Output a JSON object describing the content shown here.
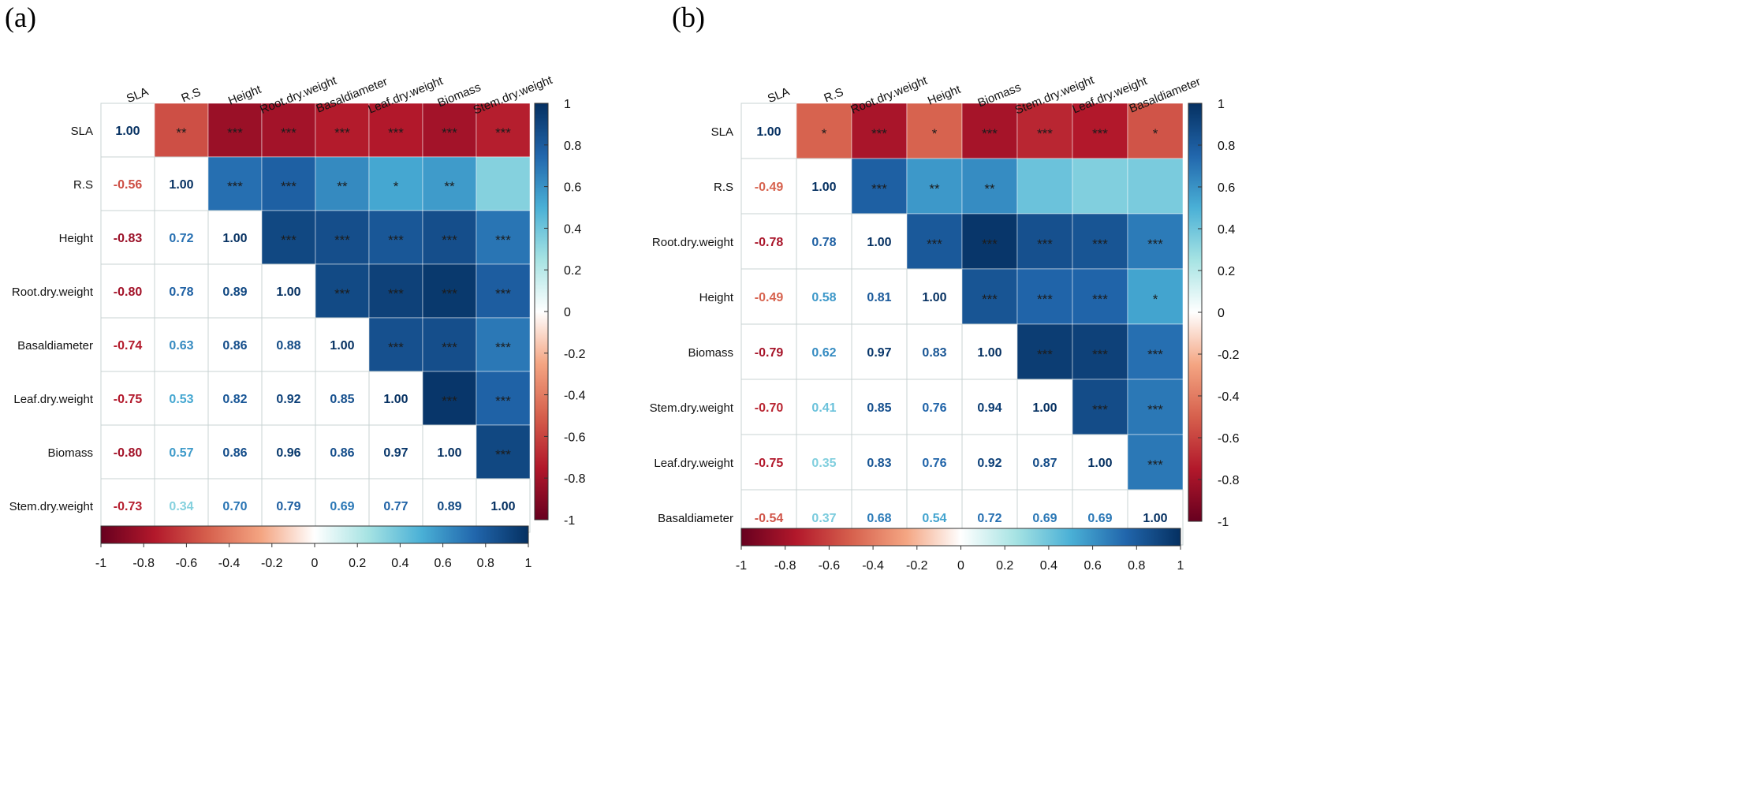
{
  "panel_labels": [
    "(a)",
    "(b)"
  ],
  "chart_data": [
    {
      "type": "heatmap",
      "panel": "(a)",
      "variables": [
        "SLA",
        "R.S",
        "Height",
        "Root.dry.weight",
        "Basaldiameter",
        "Leaf.dry.weight",
        "Biomass",
        "Stem.dry.weight"
      ],
      "lower_labels": [
        [
          "1.00",
          "",
          "",
          "",
          "",
          "",
          "",
          ""
        ],
        [
          "-0.56",
          "1.00",
          "",
          "",
          "",
          "",
          "",
          ""
        ],
        [
          "-0.83",
          "0.72",
          "1.00",
          "",
          "",
          "",
          "",
          ""
        ],
        [
          "-0.80",
          "0.78",
          "0.89",
          "1.00",
          "",
          "",
          "",
          ""
        ],
        [
          "-0.74",
          "0.63",
          "0.86",
          "0.88",
          "1.00",
          "",
          "",
          ""
        ],
        [
          "-0.75",
          "0.53",
          "0.82",
          "0.92",
          "0.85",
          "1.00",
          "",
          ""
        ],
        [
          "-0.80",
          "0.57",
          "0.86",
          "0.96",
          "0.86",
          "0.97",
          "1.00",
          ""
        ],
        [
          "-0.73",
          "0.34",
          "0.70",
          "0.79",
          "0.69",
          "0.77",
          "0.89",
          "1.00"
        ]
      ],
      "significance": [
        [
          "",
          "**",
          "***",
          "***",
          "***",
          "***",
          "***",
          "***"
        ],
        [
          "",
          "",
          "***",
          "***",
          "**",
          "*",
          "**",
          ""
        ],
        [
          "",
          "",
          "",
          "***",
          "***",
          "***",
          "***",
          "***"
        ],
        [
          "",
          "",
          "",
          "",
          "***",
          "***",
          "***",
          "***"
        ],
        [
          "",
          "",
          "",
          "",
          "",
          "***",
          "***",
          "***"
        ],
        [
          "",
          "",
          "",
          "",
          "",
          "",
          "***",
          "***"
        ],
        [
          "",
          "",
          "",
          "",
          "",
          "",
          "",
          "***"
        ],
        [
          "",
          "",
          "",
          "",
          "",
          "",
          "",
          ""
        ]
      ],
      "colorbar_ticks": [
        "1",
        "0.8",
        "0.6",
        "0.4",
        "0.2",
        "0",
        "-0.2",
        "-0.4",
        "-0.6",
        "-0.8",
        "-1"
      ],
      "bottom_colorbar_ticks": [
        "-1",
        "-0.8",
        "-0.6",
        "-0.4",
        "-0.2",
        "0",
        "0.2",
        "0.4",
        "0.6",
        "0.8",
        "1"
      ],
      "scale": [
        -1,
        1
      ]
    },
    {
      "type": "heatmap",
      "panel": "(b)",
      "variables": [
        "SLA",
        "R.S",
        "Root.dry.weight",
        "Height",
        "Biomass",
        "Stem.dry.weight",
        "Leaf.dry.weight",
        "Basaldiameter"
      ],
      "lower_labels": [
        [
          "1.00",
          "",
          "",
          "",
          "",
          "",
          "",
          ""
        ],
        [
          "-0.49",
          "1.00",
          "",
          "",
          "",
          "",
          "",
          ""
        ],
        [
          "-0.78",
          "0.78",
          "1.00",
          "",
          "",
          "",
          "",
          ""
        ],
        [
          "-0.49",
          "0.58",
          "0.81",
          "1.00",
          "",
          "",
          "",
          ""
        ],
        [
          "-0.79",
          "0.62",
          "0.97",
          "0.83",
          "1.00",
          "",
          "",
          ""
        ],
        [
          "-0.70",
          "0.41",
          "0.85",
          "0.76",
          "0.94",
          "1.00",
          "",
          ""
        ],
        [
          "-0.75",
          "0.35",
          "0.83",
          "0.76",
          "0.92",
          "0.87",
          "1.00",
          ""
        ],
        [
          "-0.54",
          "0.37",
          "0.68",
          "0.54",
          "0.72",
          "0.69",
          "0.69",
          "1.00"
        ]
      ],
      "significance": [
        [
          "",
          "*",
          "***",
          "*",
          "***",
          "***",
          "***",
          "*"
        ],
        [
          "",
          "",
          "***",
          "**",
          "**",
          "",
          "",
          ""
        ],
        [
          "",
          "",
          "",
          "***",
          "***",
          "***",
          "***",
          "***"
        ],
        [
          "",
          "",
          "",
          "",
          "***",
          "***",
          "***",
          "*"
        ],
        [
          "",
          "",
          "",
          "",
          "",
          "***",
          "***",
          "***"
        ],
        [
          "",
          "",
          "",
          "",
          "",
          "",
          "***",
          "***"
        ],
        [
          "",
          "",
          "",
          "",
          "",
          "",
          "",
          "***"
        ],
        [
          "",
          "",
          "",
          "",
          "",
          "",
          "",
          ""
        ]
      ],
      "colorbar_ticks": [
        "1",
        "0.8",
        "0.6",
        "0.4",
        "0.2",
        "0",
        "-0.2",
        "-0.4",
        "-0.6",
        "-0.8",
        "-1"
      ],
      "bottom_colorbar_ticks": [
        "-1",
        "-0.8",
        "-0.6",
        "-0.4",
        "-0.2",
        "0",
        "0.2",
        "0.4",
        "0.6",
        "0.8",
        "1"
      ],
      "scale": [
        -1,
        1
      ]
    }
  ]
}
